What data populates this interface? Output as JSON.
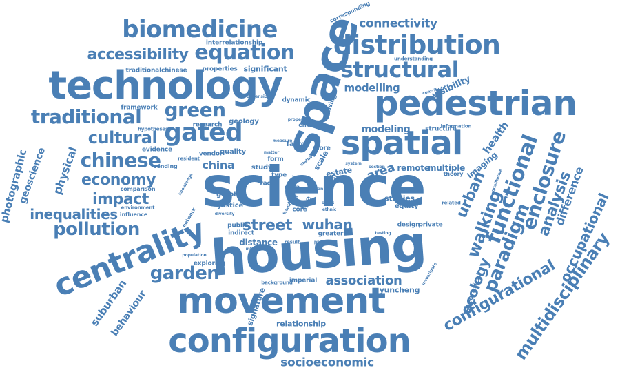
{
  "colors": {
    "word": "#4a7fb5",
    "background": "#ffffff"
  },
  "words": [
    {
      "text": "science"
    },
    {
      "text": "housing"
    },
    {
      "text": "movement"
    },
    {
      "text": "configuration"
    },
    {
      "text": "space"
    },
    {
      "text": "pedestrian"
    },
    {
      "text": "technology"
    },
    {
      "text": "spatial"
    },
    {
      "text": "centrality"
    },
    {
      "text": "distribution"
    },
    {
      "text": "biomedicine"
    },
    {
      "text": "structural"
    },
    {
      "text": "equation"
    },
    {
      "text": "accessibility"
    },
    {
      "text": "traditional"
    },
    {
      "text": "gated"
    },
    {
      "text": "green"
    },
    {
      "text": "cultural"
    },
    {
      "text": "chinese"
    },
    {
      "text": "economy"
    },
    {
      "text": "impact"
    },
    {
      "text": "inequalities"
    },
    {
      "text": "pollution"
    },
    {
      "text": "street"
    },
    {
      "text": "wuhan"
    },
    {
      "text": "garden"
    },
    {
      "text": "association"
    },
    {
      "text": "functional"
    },
    {
      "text": "enclosure"
    },
    {
      "text": "paradigm"
    },
    {
      "text": "walking"
    },
    {
      "text": "urban"
    },
    {
      "text": "configurational"
    },
    {
      "text": "multidisciplinary"
    },
    {
      "text": "occupational"
    },
    {
      "text": "analysis"
    },
    {
      "text": "difference"
    },
    {
      "text": "ecology"
    },
    {
      "text": "socioeconomic"
    },
    {
      "text": "connectivity"
    },
    {
      "text": "modelling"
    },
    {
      "text": "modeling"
    },
    {
      "text": "visibility"
    },
    {
      "text": "health"
    },
    {
      "text": "area"
    },
    {
      "text": "remote"
    },
    {
      "text": "multiple"
    },
    {
      "text": "imaging"
    },
    {
      "text": "china"
    },
    {
      "text": "physical"
    },
    {
      "text": "geoscience"
    },
    {
      "text": "photographic"
    },
    {
      "text": "suburban"
    },
    {
      "text": "behaviour"
    },
    {
      "text": "signature"
    },
    {
      "text": "relationship"
    },
    {
      "text": "yuncheng"
    },
    {
      "text": "distance"
    },
    {
      "text": "significant"
    },
    {
      "text": "properties"
    },
    {
      "text": "interrelationship"
    },
    {
      "text": "traditionalchinese"
    },
    {
      "text": "framework"
    },
    {
      "text": "research"
    },
    {
      "text": "geology"
    },
    {
      "text": "dynamic"
    },
    {
      "text": "sensing"
    },
    {
      "text": "structure"
    },
    {
      "text": "estate"
    },
    {
      "text": "scale"
    },
    {
      "text": "study"
    },
    {
      "text": "form"
    },
    {
      "text": "type"
    },
    {
      "text": "life"
    },
    {
      "text": "core"
    },
    {
      "text": "graph"
    },
    {
      "text": "justice"
    },
    {
      "text": "public"
    },
    {
      "text": "indirect"
    },
    {
      "text": "studies"
    },
    {
      "text": "equity"
    },
    {
      "text": "design"
    },
    {
      "text": "private"
    },
    {
      "text": "imperial"
    },
    {
      "text": "quality"
    },
    {
      "text": "vendor"
    },
    {
      "text": "evidence"
    },
    {
      "text": "vending"
    },
    {
      "text": "comparison"
    },
    {
      "text": "environment"
    },
    {
      "text": "influence"
    },
    {
      "text": "exploring"
    },
    {
      "text": "theoretical"
    },
    {
      "text": "factor"
    },
    {
      "text": "more"
    },
    {
      "text": "effect"
    },
    {
      "text": "hypotheses"
    },
    {
      "text": "understanding"
    },
    {
      "text": "information"
    },
    {
      "text": "corresponding"
    },
    {
      "text": "racial"
    },
    {
      "text": "data"
    },
    {
      "text": "race"
    },
    {
      "text": "different"
    },
    {
      "text": "theory"
    },
    {
      "text": "related"
    },
    {
      "text": "greater"
    },
    {
      "text": "result"
    },
    {
      "text": "background"
    },
    {
      "text": "interview"
    },
    {
      "text": "population"
    },
    {
      "text": "network"
    },
    {
      "text": "diversity"
    },
    {
      "text": "resident"
    },
    {
      "text": "knowledge"
    },
    {
      "text": "dimension"
    },
    {
      "text": "contribute"
    },
    {
      "text": "investigate"
    },
    {
      "text": "testing"
    },
    {
      "text": "previous"
    },
    {
      "text": "section"
    },
    {
      "text": "qualitative"
    },
    {
      "text": "measure"
    },
    {
      "text": "matter"
    },
    {
      "text": "status"
    },
    {
      "text": "system"
    },
    {
      "text": "property"
    },
    {
      "text": "static"
    },
    {
      "text": "ethnic"
    },
    {
      "text": "park"
    },
    {
      "text": "direct"
    },
    {
      "text": "level"
    },
    {
      "text": "tradition"
    },
    {
      "text": "plan"
    }
  ]
}
